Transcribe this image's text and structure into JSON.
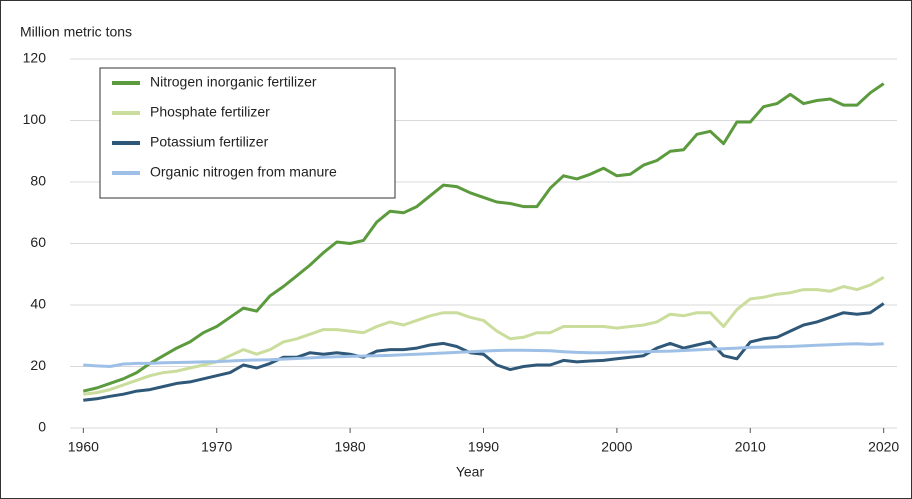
{
  "chart_data": {
    "type": "line",
    "y_axis_label": "Million metric tons",
    "x_axis_label": "Year",
    "x": [
      1960,
      1961,
      1962,
      1963,
      1964,
      1965,
      1966,
      1967,
      1968,
      1969,
      1970,
      1971,
      1972,
      1973,
      1974,
      1975,
      1976,
      1977,
      1978,
      1979,
      1980,
      1981,
      1982,
      1983,
      1984,
      1985,
      1986,
      1987,
      1988,
      1989,
      1990,
      1991,
      1992,
      1993,
      1994,
      1995,
      1996,
      1997,
      1998,
      1999,
      2000,
      2001,
      2002,
      2003,
      2004,
      2005,
      2006,
      2007,
      2008,
      2009,
      2010,
      2011,
      2012,
      2013,
      2014,
      2015,
      2016,
      2017,
      2018,
      2019,
      2020
    ],
    "series": [
      {
        "name": "Nitrogen inorganic fertilizer",
        "color": "#5b9a3d",
        "values": [
          12,
          13,
          14.5,
          16,
          18,
          21,
          23.5,
          26,
          28,
          31,
          33,
          36,
          39,
          38,
          43,
          46,
          49.5,
          53,
          57,
          60.5,
          60,
          61,
          67,
          70.5,
          70,
          72,
          75.5,
          79,
          78.5,
          76.5,
          75,
          73.5,
          73,
          72,
          72,
          78,
          82,
          81,
          82.5,
          84.5,
          82,
          82.5,
          85.5,
          87,
          90,
          90.5,
          95.5,
          96.5,
          92.5,
          99.5,
          99.5,
          104.5,
          105.5,
          108.5,
          105.5,
          106.5,
          107,
          105,
          105,
          109,
          112
        ]
      },
      {
        "name": "Phosphate fertilizer",
        "color": "#cadd9c",
        "values": [
          11,
          11.5,
          12.5,
          14,
          15.5,
          17,
          18,
          18.5,
          19.5,
          20.5,
          21.5,
          23.5,
          25.5,
          24,
          25.5,
          28,
          29,
          30.5,
          32,
          32,
          31.5,
          31,
          33,
          34.5,
          33.5,
          35,
          36.5,
          37.5,
          37.5,
          36,
          35,
          31.5,
          29,
          29.5,
          31,
          31,
          33,
          33,
          33,
          33,
          32.5,
          33,
          33.5,
          34.5,
          37,
          36.5,
          37.5,
          37.5,
          33,
          38.5,
          42,
          42.5,
          43.5,
          44,
          45,
          45,
          44.5,
          46,
          45,
          46.5,
          49
        ]
      },
      {
        "name": "Potassium fertilizer",
        "color": "#2f5878",
        "values": [
          9,
          9.5,
          10.3,
          11,
          12,
          12.5,
          13.5,
          14.5,
          15,
          16,
          17,
          18,
          20.5,
          19.5,
          21,
          23,
          23,
          24.5,
          24,
          24.5,
          24,
          23,
          25,
          25.5,
          25.5,
          26,
          27,
          27.5,
          26.5,
          24.5,
          24,
          20.5,
          19,
          20,
          20.5,
          20.5,
          22,
          21.5,
          21.8,
          22,
          22.5,
          23,
          23.5,
          26,
          27.5,
          26,
          27,
          28,
          23.5,
          22.5,
          28,
          29,
          29.5,
          31.5,
          33.5,
          34.5,
          36,
          37.5,
          37,
          37.5,
          40.5
        ]
      },
      {
        "name": "Organic nitrogen from manure",
        "color": "#9fc0e6",
        "values": [
          20.5,
          20.2,
          20,
          20.8,
          21,
          21,
          21.2,
          21.3,
          21.4,
          21.5,
          21.6,
          21.8,
          22,
          22.1,
          22.2,
          22.4,
          22.6,
          22.8,
          23,
          23.2,
          23.3,
          23.4,
          23.5,
          23.6,
          23.8,
          24,
          24.2,
          24.4,
          24.6,
          24.8,
          25,
          25.2,
          25.3,
          25.3,
          25.2,
          25.1,
          24.8,
          24.6,
          24.5,
          24.5,
          24.6,
          24.7,
          24.8,
          24.9,
          25,
          25.2,
          25.4,
          25.6,
          25.8,
          26,
          26.2,
          26.3,
          26.4,
          26.5,
          26.7,
          26.9,
          27.1,
          27.3,
          27.4,
          27.2,
          27.4
        ]
      }
    ],
    "xlim": [
      1959,
      2021
    ],
    "xticks": [
      1960,
      1970,
      1980,
      1990,
      2000,
      2010,
      2020
    ],
    "ylim": [
      0,
      120
    ],
    "yticks": [
      0,
      20,
      40,
      60,
      80,
      100,
      120
    ],
    "grid": true,
    "legend": "upper left"
  }
}
